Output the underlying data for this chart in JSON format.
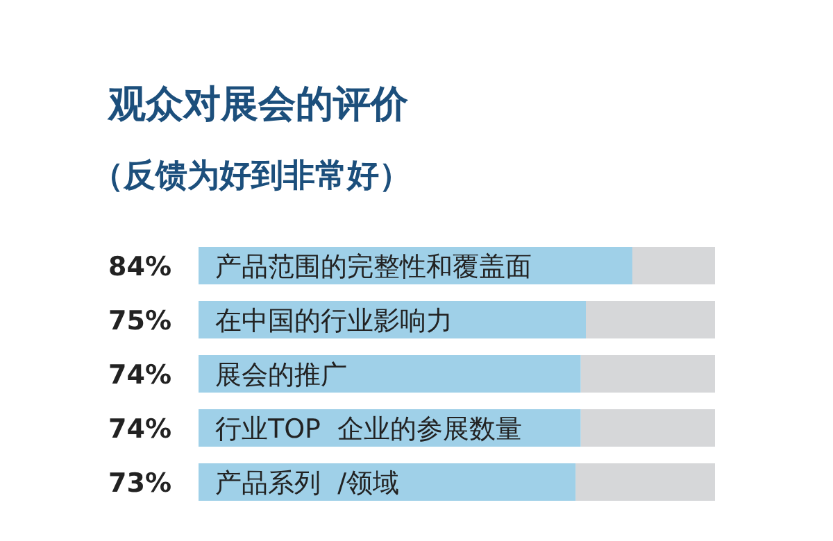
{
  "chart_data": {
    "type": "bar",
    "orientation": "horizontal",
    "title": "观众对展会的评价",
    "subtitle": "（反馈为好到非常好）",
    "categories": [
      "产品范围的完整性和覆盖面",
      "在中国的行业影响力",
      "展会的推广",
      "行业TOP  企业的参展数量",
      "产品系列  /领域"
    ],
    "values": [
      84,
      75,
      74,
      74,
      73
    ],
    "value_labels": [
      "84%",
      "75%",
      "74%",
      "74%",
      "73%"
    ],
    "color": "#9fd0e8",
    "xlim": [
      0,
      100
    ]
  }
}
